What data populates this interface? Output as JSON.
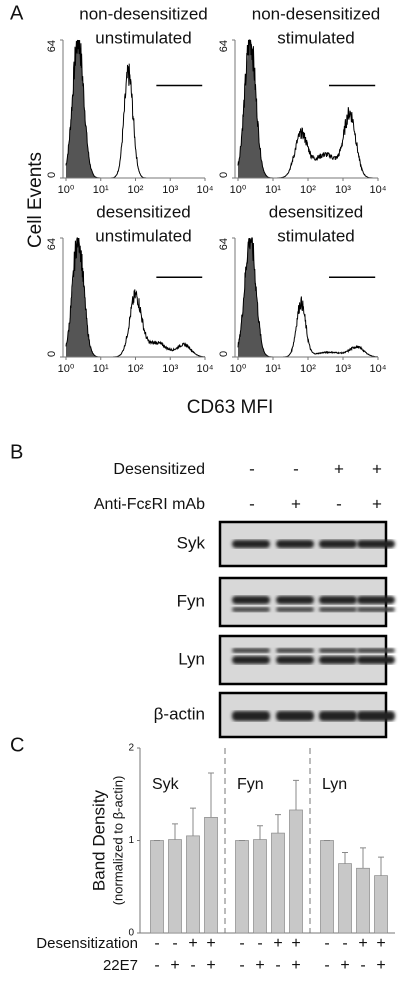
{
  "panels": {
    "a": {
      "label": "A",
      "y_label": "Cell Events",
      "x_label": "CD63 MFI"
    },
    "b": {
      "label": "B",
      "rows": [
        {
          "name": "Desensitized",
          "signs": [
            "-",
            "-",
            "+",
            "+"
          ]
        },
        {
          "name": "Anti-FcεRI mAb",
          "signs": [
            "-",
            "+",
            "-",
            "+"
          ]
        }
      ],
      "blots": [
        "Syk",
        "Fyn",
        "Lyn",
        "β-actin"
      ]
    },
    "c": {
      "label": "C"
    }
  },
  "chart_data": [
    {
      "type": "histogram",
      "title": [
        "non-desensitized",
        "unstimulated"
      ],
      "xscale": "log",
      "xlim": [
        1,
        10000
      ],
      "xticks": [
        {
          "value": 1,
          "label": "10⁰"
        },
        {
          "value": 10,
          "label": "10¹"
        },
        {
          "value": 100,
          "label": "10²"
        },
        {
          "value": 1000,
          "label": "10³"
        },
        {
          "value": 10000,
          "label": "10⁴"
        }
      ],
      "ylim": [
        0,
        64
      ],
      "yticks": [
        0,
        64
      ]
    },
    {
      "type": "histogram",
      "title": [
        "non-desensitized",
        "stimulated"
      ],
      "xscale": "log",
      "xlim": [
        1,
        10000
      ],
      "xticks": [
        {
          "value": 1,
          "label": "10⁰"
        },
        {
          "value": 10,
          "label": "10¹"
        },
        {
          "value": 100,
          "label": "10²"
        },
        {
          "value": 1000,
          "label": "10³"
        },
        {
          "value": 10000,
          "label": "10⁴"
        }
      ],
      "ylim": [
        0,
        64
      ],
      "yticks": [
        0,
        64
      ]
    },
    {
      "type": "histogram",
      "title": [
        "desensitized",
        "unstimulated"
      ],
      "xscale": "log",
      "xlim": [
        1,
        10000
      ],
      "xticks": [
        {
          "value": 1,
          "label": "10⁰"
        },
        {
          "value": 10,
          "label": "10¹"
        },
        {
          "value": 100,
          "label": "10²"
        },
        {
          "value": 1000,
          "label": "10³"
        },
        {
          "value": 10000,
          "label": "10⁴"
        }
      ],
      "ylim": [
        0,
        64
      ],
      "yticks": [
        0,
        64
      ]
    },
    {
      "type": "histogram",
      "title": [
        "desensitized",
        "stimulated"
      ],
      "xscale": "log",
      "xlim": [
        1,
        10000
      ],
      "xticks": [
        {
          "value": 1,
          "label": "10⁰"
        },
        {
          "value": 10,
          "label": "10¹"
        },
        {
          "value": 100,
          "label": "10²"
        },
        {
          "value": 1000,
          "label": "10³"
        },
        {
          "value": 10000,
          "label": "10⁴"
        }
      ],
      "ylim": [
        0,
        64
      ],
      "yticks": [
        0,
        64
      ]
    },
    {
      "type": "bar",
      "y_label": [
        "Band Density",
        "(normalized to β-actin)"
      ],
      "color": "#c8c8c8",
      "ylim": [
        0,
        2
      ],
      "yticks": [
        0,
        1,
        2
      ],
      "groups": [
        {
          "name": "Syk",
          "values": [
            1,
            1.01,
            1.05,
            1.25
          ],
          "errors": [
            0,
            0.17,
            0.3,
            0.48
          ]
        },
        {
          "name": "Fyn",
          "values": [
            1,
            1.01,
            1.08,
            1.33
          ],
          "errors": [
            0,
            0.15,
            0.2,
            0.32
          ]
        },
        {
          "name": "Lyn",
          "values": [
            1,
            0.75,
            0.7,
            0.62
          ],
          "errors": [
            0,
            0.12,
            0.22,
            0.2
          ]
        }
      ],
      "rows": [
        {
          "name": "Desensitization",
          "signs": [
            "-",
            "-",
            "+",
            "+"
          ]
        },
        {
          "name": "22E7",
          "signs": [
            "-",
            "+",
            "-",
            "+"
          ]
        }
      ]
    }
  ]
}
